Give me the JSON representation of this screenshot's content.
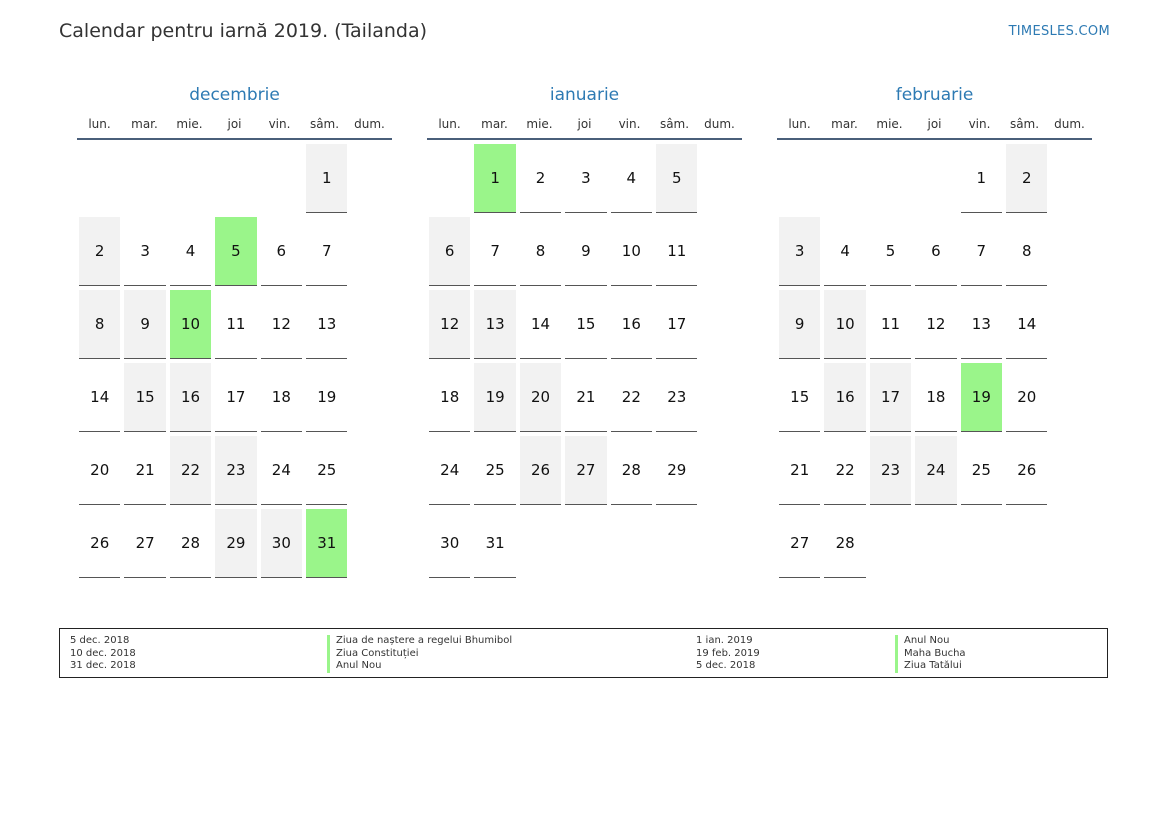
{
  "title": "Calendar pentru iarnă 2019. (Tailanda)",
  "brand": "TIMESLES.COM",
  "weekdays": [
    "lun.",
    "mar.",
    "mie.",
    "joi",
    "vin.",
    "sâm.",
    "dum."
  ],
  "colors": {
    "accent": "#2d7ab3",
    "holiday": "#9af58a",
    "weekend": "#f2f2f2"
  },
  "months": [
    {
      "name": "decembrie",
      "offset": 5,
      "days": 31,
      "holidays": [
        5,
        10,
        31
      ]
    },
    {
      "name": "ianuarie",
      "offset": 1,
      "days": 31,
      "holidays": [
        1
      ]
    },
    {
      "name": "februarie",
      "offset": 4,
      "days": 28,
      "holidays": [
        19
      ]
    }
  ],
  "legend": {
    "left": [
      {
        "date": "5 dec. 2018",
        "name": "Ziua de naștere a regelui Bhumibol"
      },
      {
        "date": "10 dec. 2018",
        "name": "Ziua Constituției"
      },
      {
        "date": "31 dec. 2018",
        "name": "Anul Nou"
      }
    ],
    "right": [
      {
        "date": "1 ian. 2019",
        "name": "Anul Nou"
      },
      {
        "date": "19 feb. 2019",
        "name": "Maha Bucha"
      },
      {
        "date": "5 dec. 2018",
        "name": "Ziua Tatălui"
      }
    ]
  }
}
